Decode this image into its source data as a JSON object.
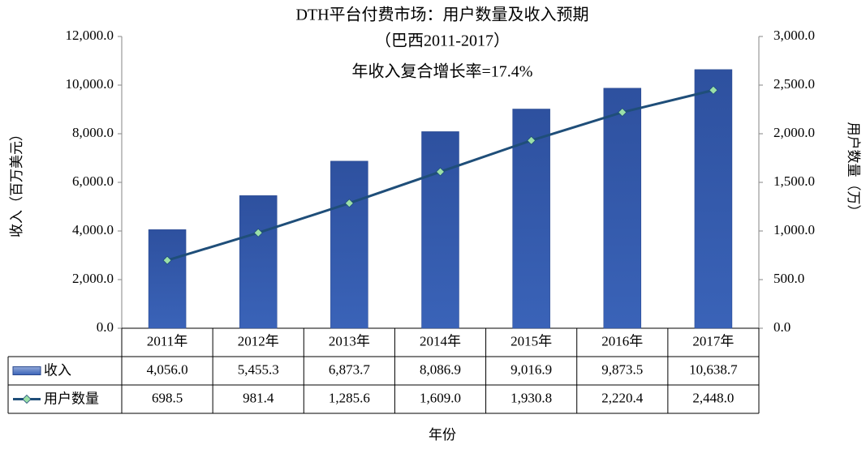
{
  "chart_data": {
    "type": "bar",
    "title": "DTH平台付费市场：用户数量及收入预期",
    "subtitle": "（巴西2011-2017）",
    "annotation": "年收入复合增长率=17.4%",
    "x_label": "年份",
    "y_label": "收入（百万美元）",
    "y2_label": "用户数量（万）",
    "categories": [
      "2011年",
      "2012年",
      "2013年",
      "2014年",
      "2015年",
      "2016年",
      "2017年"
    ],
    "series": [
      {
        "name": "收入",
        "type": "bar",
        "color": "#3a63b8",
        "values": [
          4056.0,
          5455.3,
          6873.7,
          8086.9,
          9016.9,
          9873.5,
          10638.7
        ],
        "value_labels": [
          "4,056.0",
          "5,455.3",
          "6,873.7",
          "8,086.9",
          "9,016.9",
          "9,873.5",
          "10,638.7"
        ]
      },
      {
        "name": "用户数量",
        "type": "line",
        "axis": "y2",
        "color": "#1f4e79",
        "marker_color": "#9be0a8",
        "values": [
          698.5,
          981.4,
          1285.6,
          1609.0,
          1930.8,
          2220.4,
          2448.0
        ],
        "value_labels": [
          "698.5",
          "981.4",
          "1,285.6",
          "1,609.0",
          "1,930.8",
          "2,220.4",
          "2,448.0"
        ]
      }
    ],
    "ylim": [
      0,
      12000
    ],
    "yticks": [
      {
        "value": 0,
        "label": "0.0"
      },
      {
        "value": 2000,
        "label": "2,000.0"
      },
      {
        "value": 4000,
        "label": "4,000.0"
      },
      {
        "value": 6000,
        "label": "6,000.0"
      },
      {
        "value": 8000,
        "label": "8,000.0"
      },
      {
        "value": 10000,
        "label": "10,000.0"
      },
      {
        "value": 12000,
        "label": "12,000.0"
      }
    ],
    "y2lim": [
      0,
      3000
    ],
    "y2ticks": [
      {
        "value": 0,
        "label": "0.0"
      },
      {
        "value": 500,
        "label": "500.0"
      },
      {
        "value": 1000,
        "label": "1,000.0"
      },
      {
        "value": 1500,
        "label": "1,500.0"
      },
      {
        "value": 2000,
        "label": "2,000.0"
      },
      {
        "value": 2500,
        "label": "2,500.0"
      },
      {
        "value": 3000,
        "label": "3,000.0"
      }
    ],
    "grid": false
  }
}
